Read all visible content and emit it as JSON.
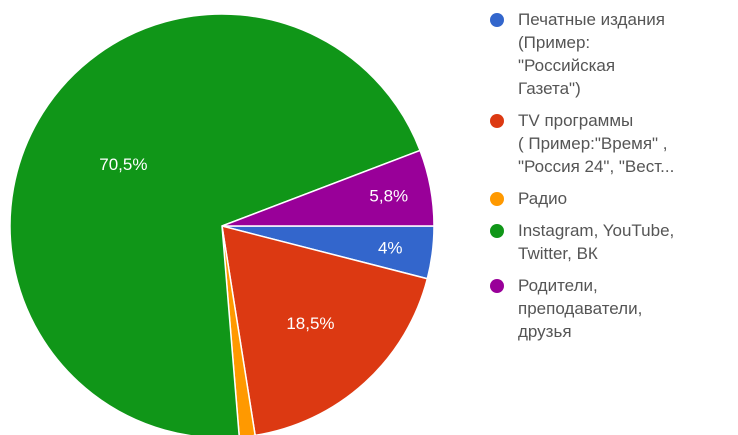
{
  "chart_data": {
    "type": "pie",
    "slices": [
      {
        "label": "Печатные издания\n(Пример:\n\"Российская\nГазета\")",
        "value": 4,
        "value_label": "4%",
        "color": "#3366cc"
      },
      {
        "label": "TV программы\n( Пример:\"Время\" ,\n\"Россия 24\", \"Вест...",
        "value": 18.5,
        "value_label": "18,5%",
        "color": "#dc3912"
      },
      {
        "label": "Радио",
        "value": 1.2,
        "value_label": "",
        "color": "#ff9900"
      },
      {
        "label": "Instagram, YouTube,\nTwitter, ВК",
        "value": 70.5,
        "value_label": "70,5%",
        "color": "#109618"
      },
      {
        "label": "Родители,\nпреподаватели,\nдрузья",
        "value": 5.8,
        "value_label": "5,8%",
        "color": "#990099"
      }
    ],
    "start_angle_deg": 90,
    "direction": "clockwise",
    "legend_position": "right"
  }
}
